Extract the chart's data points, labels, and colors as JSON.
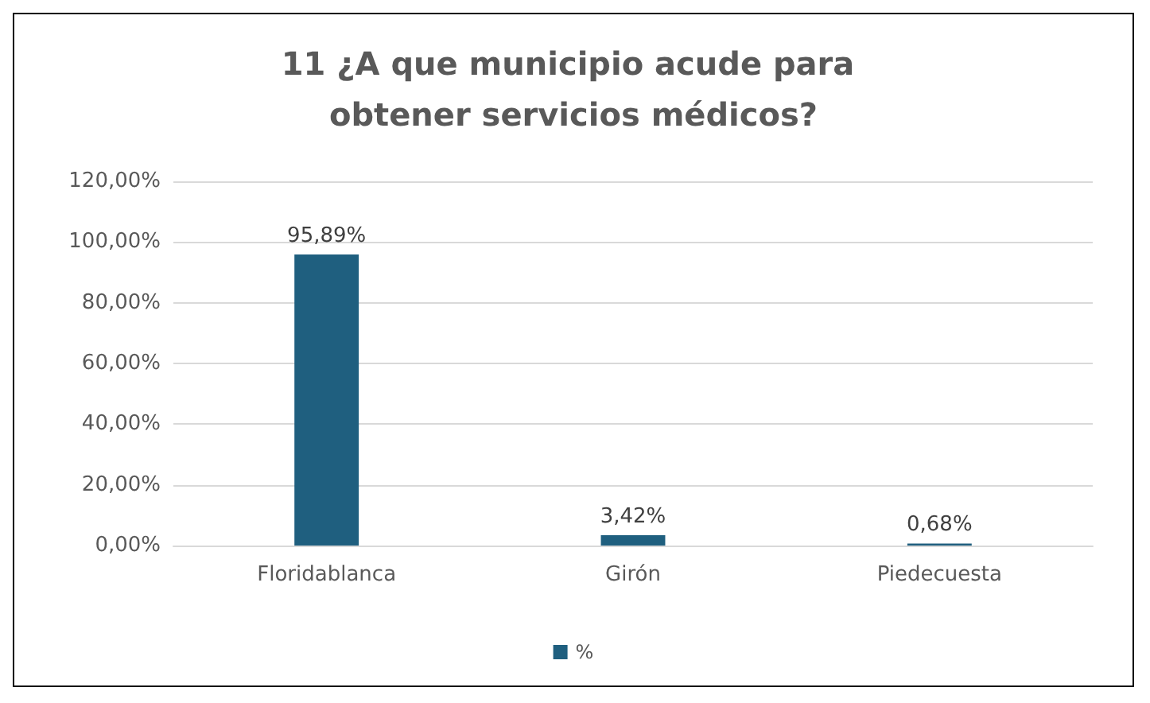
{
  "chart_data": {
    "type": "bar",
    "title": "11 ¿A que municipio acude para obtener servicios médicos?",
    "categories": [
      "Floridablanca",
      "Girón",
      "Piedecuesta"
    ],
    "series": [
      {
        "name": "%",
        "color": "#1f5f7f",
        "values": [
          95.89,
          3.42,
          0.68
        ],
        "value_labels": [
          "95,89%",
          "3,42%",
          "0,68%"
        ]
      }
    ],
    "ylim": [
      0,
      120
    ],
    "yticks": [
      {
        "value": 0,
        "label": "0,00%"
      },
      {
        "value": 20,
        "label": "20,00%"
      },
      {
        "value": 40,
        "label": "40,00%"
      },
      {
        "value": 60,
        "label": "60,00%"
      },
      {
        "value": 80,
        "label": "80,00%"
      },
      {
        "value": 100,
        "label": "100,00%"
      },
      {
        "value": 120,
        "label": "120,00%"
      }
    ],
    "grid": "y",
    "legend": "bottom"
  }
}
